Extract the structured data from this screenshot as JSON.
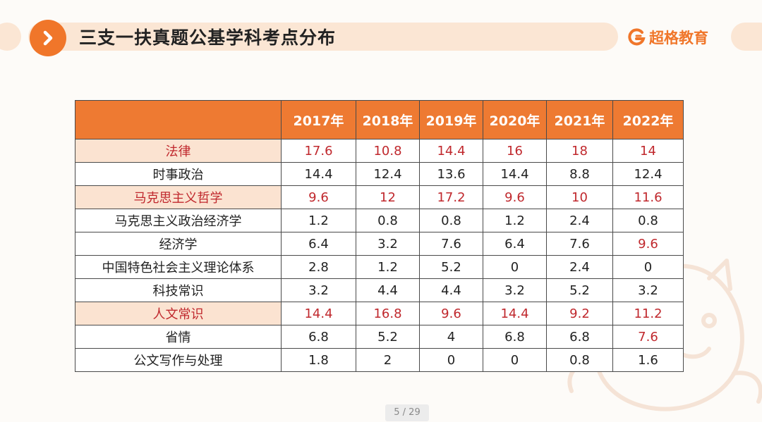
{
  "header": {
    "title": "三支一扶真题公基学科考点分布",
    "brand_name": "超格教育",
    "accent_color": "#f0762a",
    "title_icon": "chevron-right-icon",
    "brand_icon": "brand-logo-icon"
  },
  "table": {
    "corner_label": "",
    "columns": [
      "2017年",
      "2018年",
      "2019年",
      "2020年",
      "2021年",
      "2022年"
    ],
    "highlight_color": "#c0282d",
    "rows": [
      {
        "subject": "法律",
        "highlight": true,
        "values": [
          "17.6",
          "10.8",
          "14.4",
          "16",
          "18",
          "14"
        ],
        "red_cells": [
          0,
          1,
          2,
          3,
          4,
          5
        ]
      },
      {
        "subject": "时事政治",
        "highlight": false,
        "values": [
          "14.4",
          "12.4",
          "13.6",
          "14.4",
          "8.8",
          "12.4"
        ],
        "red_cells": []
      },
      {
        "subject": "马克思主义哲学",
        "highlight": true,
        "values": [
          "9.6",
          "12",
          "17.2",
          "9.6",
          "10",
          "11.6"
        ],
        "red_cells": [
          0,
          1,
          2,
          3,
          4,
          5
        ]
      },
      {
        "subject": "马克思主义政治经济学",
        "highlight": false,
        "values": [
          "1.2",
          "0.8",
          "0.8",
          "1.2",
          "2.4",
          "0.8"
        ],
        "red_cells": []
      },
      {
        "subject": "经济学",
        "highlight": false,
        "values": [
          "6.4",
          "3.2",
          "7.6",
          "6.4",
          "7.6",
          "9.6"
        ],
        "red_cells": [
          5
        ]
      },
      {
        "subject": "中国特色社会主义理论体系",
        "highlight": false,
        "values": [
          "2.8",
          "1.2",
          "5.2",
          "0",
          "2.4",
          "0"
        ],
        "red_cells": []
      },
      {
        "subject": "科技常识",
        "highlight": false,
        "values": [
          "3.2",
          "4.4",
          "4.4",
          "3.2",
          "5.2",
          "3.2"
        ],
        "red_cells": []
      },
      {
        "subject": "人文常识",
        "highlight": true,
        "values": [
          "14.4",
          "16.8",
          "9.6",
          "14.4",
          "9.2",
          "11.2"
        ],
        "red_cells": [
          0,
          1,
          2,
          3,
          4,
          5
        ]
      },
      {
        "subject": "省情",
        "highlight": false,
        "values": [
          "6.8",
          "5.2",
          "4",
          "6.8",
          "6.8",
          "7.6"
        ],
        "red_cells": [
          5
        ]
      },
      {
        "subject": "公文写作与处理",
        "highlight": false,
        "values": [
          "1.8",
          "2",
          "0",
          "0",
          "0.8",
          "1.6"
        ],
        "red_cells": []
      }
    ]
  },
  "pager": {
    "current": "5",
    "total": "29",
    "label": "5 / 29"
  }
}
